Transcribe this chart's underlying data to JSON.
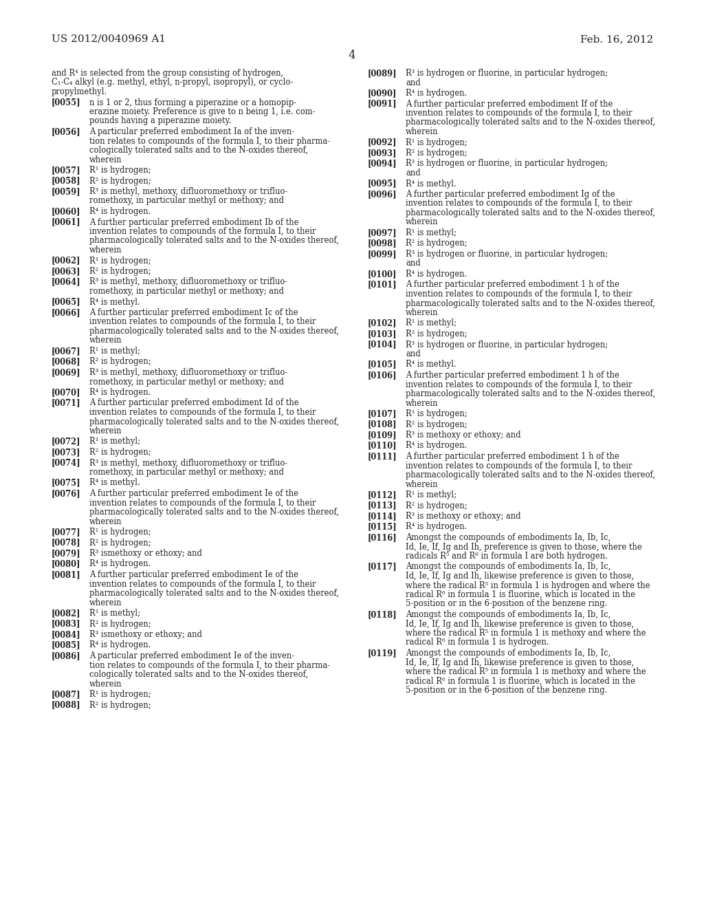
{
  "header_left": "US 2012/0040969 A1",
  "header_right": "Feb. 16, 2012",
  "page_number": "4",
  "background_color": "#ffffff",
  "text_color": "#231f20",
  "font_size": 8.5,
  "left_column": [
    {
      "type": "continuation",
      "text": "and R⁴ is selected from the group consisting of hydrogen,\nC₁-C₄ alkyl (e.g. methyl, ethyl, n-propyl, isopropyl), or cyclo-\npropylmethyl."
    },
    {
      "type": "paragraph",
      "ref": "[0055]",
      "text": "n is 1 or 2, thus forming a piperazine or a homopip-\nerazine moiety. Preference is give to n being 1, i.e. com-\npounds having a piperazine moiety."
    },
    {
      "type": "paragraph",
      "ref": "[0056]",
      "text": "A particular preferred embodiment Ia of the inven-\ntion relates to compounds of the formula I, to their pharma-\ncologically tolerated salts and to the N-oxides thereof,\nwherein"
    },
    {
      "type": "paragraph",
      "ref": "[0057]",
      "text": "R¹ is hydrogen;"
    },
    {
      "type": "paragraph",
      "ref": "[0058]",
      "text": "R² is hydrogen;"
    },
    {
      "type": "paragraph",
      "ref": "[0059]",
      "text": "R³ is methyl, methoxy, difluoromethoxy or trifluo-\nromethoxy, in particular methyl or methoxy; and"
    },
    {
      "type": "paragraph",
      "ref": "[0060]",
      "text": "R⁴ is hydrogen."
    },
    {
      "type": "paragraph",
      "ref": "[0061]",
      "text": "A further particular preferred embodiment Ib of the\ninvention relates to compounds of the formula I, to their\npharmacologically tolerated salts and to the N-oxides thereof,\nwherein"
    },
    {
      "type": "paragraph",
      "ref": "[0062]",
      "text": "R¹ is hydrogen;"
    },
    {
      "type": "paragraph",
      "ref": "[0063]",
      "text": "R² is hydrogen;"
    },
    {
      "type": "paragraph",
      "ref": "[0064]",
      "text": "R³ is methyl, methoxy, difluoromethoxy or trifluo-\nromethoxy, in particular methyl or methoxy; and"
    },
    {
      "type": "paragraph",
      "ref": "[0065]",
      "text": "R⁴ is methyl."
    },
    {
      "type": "paragraph",
      "ref": "[0066]",
      "text": "A further particular preferred embodiment Ic of the\ninvention relates to compounds of the formula I, to their\npharmacologically tolerated salts and to the N-oxides thereof,\nwherein"
    },
    {
      "type": "paragraph",
      "ref": "[0067]",
      "text": "R¹ is methyl;"
    },
    {
      "type": "paragraph",
      "ref": "[0068]",
      "text": "R² is hydrogen;"
    },
    {
      "type": "paragraph",
      "ref": "[0069]",
      "text": "R³ is methyl, methoxy, difluoromethoxy or trifluo-\nromethoxy, in particular methyl or methoxy; and"
    },
    {
      "type": "paragraph",
      "ref": "[0070]",
      "text": "R⁴ is hydrogen."
    },
    {
      "type": "paragraph",
      "ref": "[0071]",
      "text": "A further particular preferred embodiment Id of the\ninvention relates to compounds of the formula I, to their\npharmacologically tolerated salts and to the N-oxides thereof,\nwherein"
    },
    {
      "type": "paragraph",
      "ref": "[0072]",
      "text": "R¹ is methyl;"
    },
    {
      "type": "paragraph",
      "ref": "[0073]",
      "text": "R² is hydrogen;"
    },
    {
      "type": "paragraph",
      "ref": "[0074]",
      "text": "R³ is methyl, methoxy, difluoromethoxy or trifluo-\nromethoxy, in particular methyl or methoxy; and"
    },
    {
      "type": "paragraph",
      "ref": "[0075]",
      "text": "R⁴ is methyl."
    },
    {
      "type": "paragraph",
      "ref": "[0076]",
      "text": "A further particular preferred embodiment Ie of the\ninvention relates to compounds of the formula I, to their\npharmacologically tolerated salts and to the N-oxides thereof,\nwherein"
    },
    {
      "type": "paragraph",
      "ref": "[0077]",
      "text": "R¹ is hydrogen;"
    },
    {
      "type": "paragraph",
      "ref": "[0078]",
      "text": "R² is hydrogen;"
    },
    {
      "type": "paragraph",
      "ref": "[0079]",
      "text": "R³ ismethoxy or ethoxy; and"
    },
    {
      "type": "paragraph",
      "ref": "[0080]",
      "text": "R⁴ is hydrogen."
    },
    {
      "type": "paragraph",
      "ref": "[0081]",
      "text": "A further particular preferred embodiment Ie of the\ninvention relates to compounds of the formula I, to their\npharmacologically tolerated salts and to the N-oxides thereof,\nwherein"
    },
    {
      "type": "paragraph",
      "ref": "[0082]",
      "text": "R¹ is methyl;"
    },
    {
      "type": "paragraph",
      "ref": "[0083]",
      "text": "R² is hydrogen;"
    },
    {
      "type": "paragraph",
      "ref": "[0084]",
      "text": "R³ ismethoxy or ethoxy; and"
    },
    {
      "type": "paragraph",
      "ref": "[0085]",
      "text": "R⁴ is hydrogen."
    },
    {
      "type": "paragraph",
      "ref": "[0086]",
      "text": "A particular preferred embodiment Ie of the inven-\ntion relates to compounds of the formula I, to their pharma-\ncologically tolerated salts and to the N-oxides thereof,\nwherein"
    },
    {
      "type": "paragraph",
      "ref": "[0087]",
      "text": "R¹ is hydrogen;"
    },
    {
      "type": "paragraph",
      "ref": "[0088]",
      "text": "R² is hydrogen;"
    }
  ],
  "right_column": [
    {
      "type": "paragraph",
      "ref": "[0089]",
      "text": "R³ is hydrogen or fluorine, in particular hydrogen;\nand"
    },
    {
      "type": "paragraph",
      "ref": "[0090]",
      "text": "R⁴ is hydrogen."
    },
    {
      "type": "paragraph",
      "ref": "[0091]",
      "text": "A further particular preferred embodiment If of the\ninvention relates to compounds of the formula I, to their\npharmacologically tolerated salts and to the N-oxides thereof,\nwherein"
    },
    {
      "type": "paragraph",
      "ref": "[0092]",
      "text": "R¹ is hydrogen;"
    },
    {
      "type": "paragraph",
      "ref": "[0093]",
      "text": "R² is hydrogen;"
    },
    {
      "type": "paragraph",
      "ref": "[0094]",
      "text": "R³ is hydrogen or fluorine, in particular hydrogen;\nand"
    },
    {
      "type": "paragraph",
      "ref": "[0095]",
      "text": "R⁴ is methyl."
    },
    {
      "type": "paragraph",
      "ref": "[0096]",
      "text": "A further particular preferred embodiment Ig of the\ninvention relates to compounds of the formula I, to their\npharmacologically tolerated salts and to the N-oxides thereof,\nwherein"
    },
    {
      "type": "paragraph",
      "ref": "[0097]",
      "text": "R¹ is methyl;"
    },
    {
      "type": "paragraph",
      "ref": "[0098]",
      "text": "R² is hydrogen;"
    },
    {
      "type": "paragraph",
      "ref": "[0099]",
      "text": "R³ is hydrogen or fluorine, in particular hydrogen;\nand"
    },
    {
      "type": "paragraph",
      "ref": "[0100]",
      "text": "R⁴ is hydrogen."
    },
    {
      "type": "paragraph",
      "ref": "[0101]",
      "text": "A further particular preferred embodiment 1 h of the\ninvention relates to compounds of the formula I, to their\npharmacologically tolerated salts and to the N-oxides thereof,\nwherein"
    },
    {
      "type": "paragraph",
      "ref": "[0102]",
      "text": "R¹ is methyl;"
    },
    {
      "type": "paragraph",
      "ref": "[0103]",
      "text": "R² is hydrogen;"
    },
    {
      "type": "paragraph",
      "ref": "[0104]",
      "text": "R³ is hydrogen or fluorine, in particular hydrogen;\nand"
    },
    {
      "type": "paragraph",
      "ref": "[0105]",
      "text": "R⁴ is methyl."
    },
    {
      "type": "paragraph",
      "ref": "[0106]",
      "text": "A further particular preferred embodiment 1 h of the\ninvention relates to compounds of the formula I, to their\npharmacologically tolerated salts and to the N-oxides thereof,\nwherein"
    },
    {
      "type": "paragraph",
      "ref": "[0107]",
      "text": "R¹ is hydrogen;"
    },
    {
      "type": "paragraph",
      "ref": "[0108]",
      "text": "R² is hydrogen;"
    },
    {
      "type": "paragraph",
      "ref": "[0109]",
      "text": "R³ is methoxy or ethoxy; and"
    },
    {
      "type": "paragraph",
      "ref": "[0110]",
      "text": "R⁴ is hydrogen."
    },
    {
      "type": "paragraph",
      "ref": "[0111]",
      "text": "A further particular preferred embodiment 1 h of the\ninvention relates to compounds of the formula I, to their\npharmacologically tolerated salts and to the N-oxides thereof,\nwherein"
    },
    {
      "type": "paragraph",
      "ref": "[0112]",
      "text": "R¹ is methyl;"
    },
    {
      "type": "paragraph",
      "ref": "[0113]",
      "text": "R² is hydrogen;"
    },
    {
      "type": "paragraph",
      "ref": "[0114]",
      "text": "R³ is methoxy or ethoxy; and"
    },
    {
      "type": "paragraph",
      "ref": "[0115]",
      "text": "R⁴ is hydrogen."
    },
    {
      "type": "paragraph",
      "ref": "[0116]",
      "text": "Amongst the compounds of embodiments Ia, Ib, Ic,\nId, Ie, If, Ig and Ih, preference is given to those, where the\nradicals R⁵ and R⁶ in formula I are both hydrogen."
    },
    {
      "type": "paragraph",
      "ref": "[0117]",
      "text": "Amongst the compounds of embodiments Ia, Ib, Ic,\nId, Ie, If, Ig and Ih, likewise preference is given to those,\nwhere the radical R⁵ in formula 1 is hydrogen and where the\nradical R⁶ in formula 1 is fluorine, which is located in the\n5-position or in the 6-position of the benzene ring."
    },
    {
      "type": "paragraph",
      "ref": "[0118]",
      "text": "Amongst the compounds of embodiments Ia, Ib, Ic,\nId, Ie, If, Ig and Ih, likewise preference is given to those,\nwhere the radical R⁵ in formula 1 is methoxy and where the\nradical R⁶ in formula 1 is hydrogen."
    },
    {
      "type": "paragraph",
      "ref": "[0119]",
      "text": "Amongst the compounds of embodiments Ia, Ib, Ic,\nId, Ie, If, Ig and Ih, likewise preference is given to those,\nwhere the radical R⁵ in formula 1 is methoxy and where the\nradical R⁶ in formula 1 is fluorine, which is located in the\n5-position or in the 6-position of the benzene ring."
    }
  ]
}
